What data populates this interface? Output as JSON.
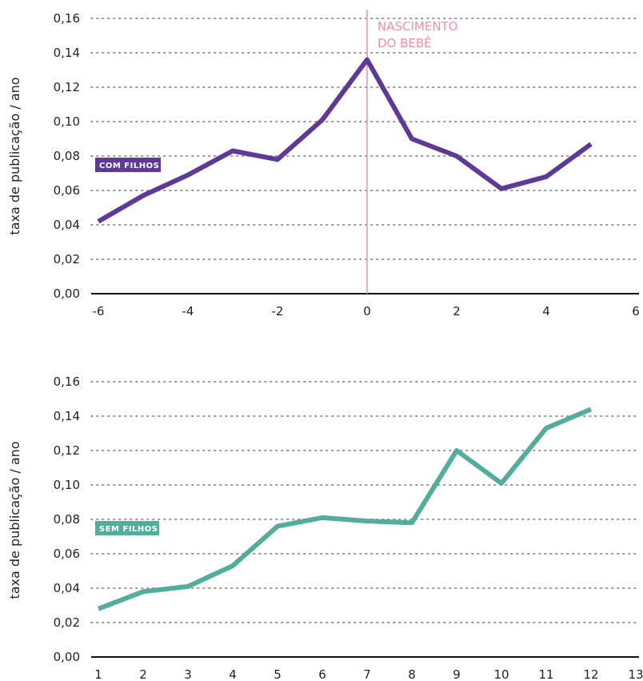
{
  "chart_data": [
    {
      "type": "line",
      "ylabel": "taxa de publicação / ano",
      "xlabel": "",
      "title": "",
      "ylim": [
        0,
        0.16
      ],
      "xlim": [
        -6,
        6
      ],
      "y_ticks": [
        "0,00",
        "0,02",
        "0,04",
        "0,06",
        "0,08",
        "0,10",
        "0,12",
        "0,14",
        "0,16"
      ],
      "x_ticks": [
        "-6",
        "-4",
        "-2",
        "0",
        "2",
        "4",
        "6"
      ],
      "grid": "horizontal dotted",
      "series": [
        {
          "name": "COM FILHOS",
          "color": "#5e3a96",
          "x": [
            -6,
            -5,
            -4,
            -3,
            -2,
            -1,
            0,
            1,
            2,
            3,
            4,
            5
          ],
          "values": [
            0.042,
            0.057,
            0.069,
            0.083,
            0.078,
            0.101,
            0.136,
            0.09,
            0.08,
            0.061,
            0.068,
            0.087
          ]
        }
      ],
      "annotation": {
        "x": 0,
        "color": "#f08fa8",
        "lines": [
          "NASCIMENTO",
          "DO BEBÊ"
        ]
      }
    },
    {
      "type": "line",
      "ylabel": "taxa de publicação / ano",
      "xlabel": "",
      "title": "",
      "ylim": [
        0,
        0.16
      ],
      "xlim": [
        1,
        13
      ],
      "y_ticks": [
        "0,00",
        "0,02",
        "0,04",
        "0,06",
        "0,08",
        "0,10",
        "0,12",
        "0,14",
        "0,16"
      ],
      "x_ticks": [
        "1",
        "2",
        "3",
        "4",
        "5",
        "6",
        "7",
        "8",
        "9",
        "10",
        "11",
        "12",
        "13"
      ],
      "grid": "horizontal dotted",
      "series": [
        {
          "name": "SEM FILHOS",
          "color": "#52ad9c",
          "x": [
            1,
            2,
            3,
            4,
            5,
            6,
            7,
            8,
            9,
            10,
            11,
            12
          ],
          "values": [
            0.028,
            0.038,
            0.041,
            0.053,
            0.076,
            0.081,
            0.079,
            0.078,
            0.12,
            0.101,
            0.133,
            0.144
          ]
        }
      ]
    }
  ]
}
